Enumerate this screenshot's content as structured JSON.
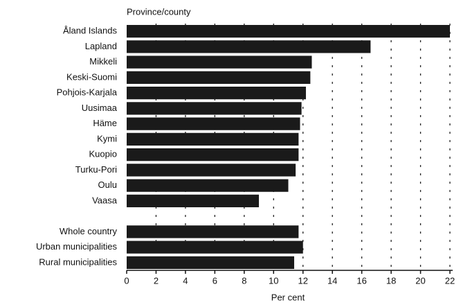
{
  "chart_data": {
    "type": "bar",
    "orientation": "horizontal",
    "category_axis_label": "Province/county",
    "xlabel": "Per cent",
    "categories": [
      "Åland Islands",
      "Lapland",
      "Mikkeli",
      "Keski-Suomi",
      "Pohjois-Karjala",
      "Uusimaa",
      "Häme",
      "Kymi",
      "Kuopio",
      "Turku-Pori",
      "Oulu",
      "Vaasa",
      null,
      "Whole country",
      "Urban municipalities",
      "Rural municipalities"
    ],
    "values": [
      22.0,
      16.6,
      12.6,
      12.5,
      12.2,
      11.9,
      11.8,
      11.7,
      11.7,
      11.5,
      11.0,
      9.0,
      null,
      11.7,
      12.0,
      11.4
    ],
    "color": "#1a1a1a",
    "xlim": [
      0,
      22
    ],
    "xticks": [
      0,
      2,
      4,
      6,
      8,
      10,
      12,
      14,
      16,
      18,
      20,
      22
    ],
    "grid": true
  }
}
